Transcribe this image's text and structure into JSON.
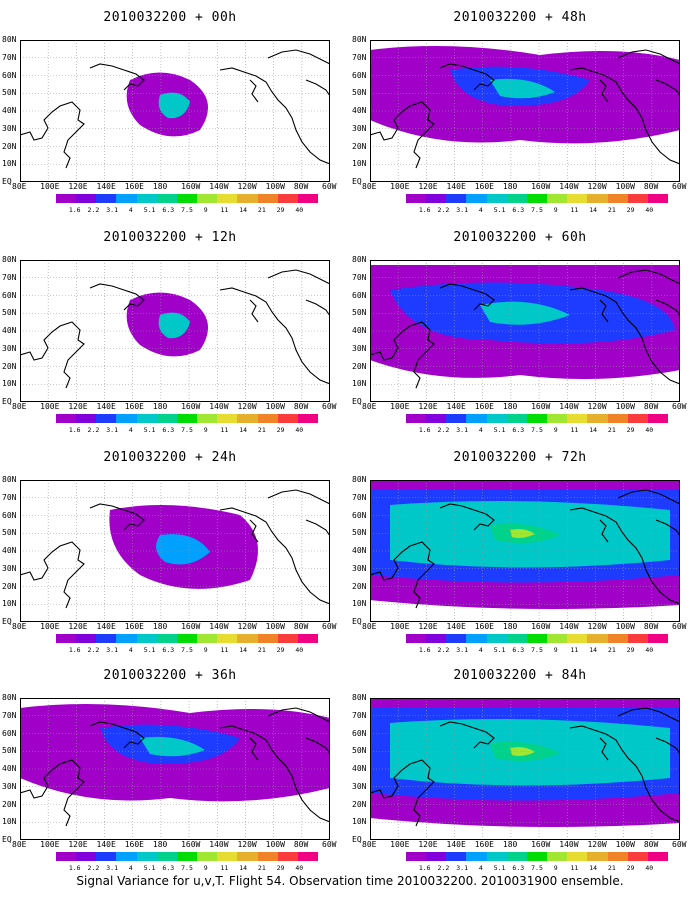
{
  "panels": [
    {
      "title": "2010032200 + 00h",
      "field_level": "low"
    },
    {
      "title": "2010032200 + 48h",
      "field_level": "medium"
    },
    {
      "title": "2010032200 + 12h",
      "field_level": "low"
    },
    {
      "title": "2010032200 + 60h",
      "field_level": "medium-high"
    },
    {
      "title": "2010032200 + 24h",
      "field_level": "low-medium"
    },
    {
      "title": "2010032200 + 72h",
      "field_level": "high"
    },
    {
      "title": "2010032200 + 36h",
      "field_level": "medium"
    },
    {
      "title": "2010032200 + 84h",
      "field_level": "high"
    }
  ],
  "lat_labels": [
    "80N",
    "70N",
    "60N",
    "50N",
    "40N",
    "30N",
    "20N",
    "10N",
    "EQ"
  ],
  "lon_labels": [
    "80E",
    "100E",
    "120E",
    "140E",
    "160E",
    "180",
    "160W",
    "140W",
    "120W",
    "100W",
    "80W",
    "60W"
  ],
  "colorbar": {
    "labels": [
      "1.6",
      "2.2",
      "3.1",
      "4",
      "5.1",
      "6.3",
      "7.5",
      "9",
      "11",
      "14",
      "21",
      "29",
      "40"
    ],
    "colors": [
      "#a000c8",
      "#8200dc",
      "#1e3cff",
      "#00a0ff",
      "#00c8c8",
      "#00d28c",
      "#00dc00",
      "#a0e632",
      "#e6dc32",
      "#e6af2d",
      "#f08228",
      "#fa3c3c",
      "#f00082"
    ]
  },
  "caption": "Signal Variance for u,v,T. Flight 54. Observation time 2010032200. 2010031900 ensemble."
}
